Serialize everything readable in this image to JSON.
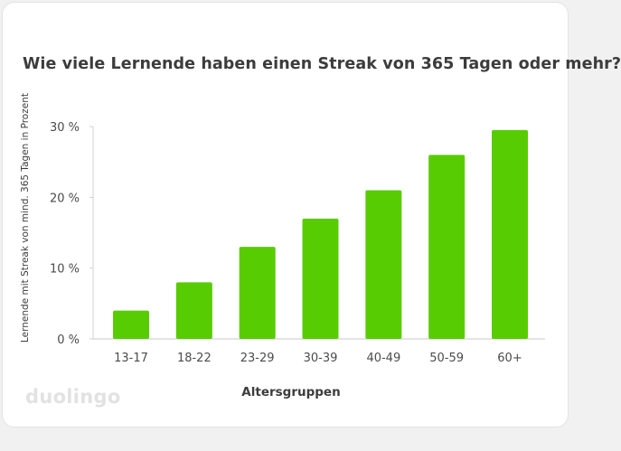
{
  "brand": {
    "logo_text": "duolingo"
  },
  "chart_data": {
    "type": "bar",
    "title": "Wie viele Lernende haben einen Streak von 365 Tagen oder mehr?",
    "xlabel": "Altersgruppen",
    "ylabel": "Lernende mit Streak von mind. 365 Tagen in Prozent",
    "categories": [
      "13-17",
      "18-22",
      "23-29",
      "30-39",
      "40-49",
      "50-59",
      "60+"
    ],
    "values": [
      4,
      8,
      13,
      17,
      21,
      26,
      29.5
    ],
    "ylim": [
      0,
      30
    ],
    "yticks": [
      0,
      10,
      20,
      30
    ],
    "ytick_labels": [
      "0 %",
      "10 %",
      "20 %",
      "30 %"
    ],
    "grid": false,
    "bar_color": "#58cc02"
  }
}
